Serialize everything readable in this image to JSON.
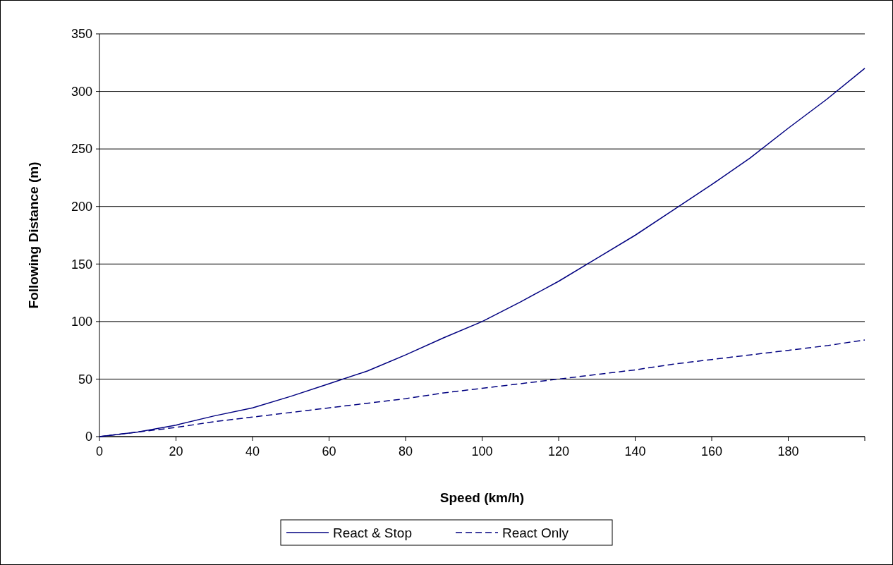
{
  "chart_data": {
    "type": "line",
    "xlabel": "Speed (km/h)",
    "ylabel": "Following Distance (m)",
    "x": [
      0,
      10,
      20,
      30,
      40,
      50,
      60,
      70,
      80,
      90,
      100,
      110,
      120,
      130,
      140,
      150,
      160,
      170,
      180,
      190,
      200
    ],
    "series": [
      {
        "name": "React & Stop",
        "color": "#000080",
        "line_style": "solid",
        "values": [
          0,
          4,
          10,
          18,
          25,
          35,
          46,
          57,
          71,
          86,
          100,
          117,
          135,
          155,
          175,
          197,
          219,
          242,
          268,
          293,
          320
        ]
      },
      {
        "name": "React Only",
        "color": "#000080",
        "line_style": "dashed",
        "values": [
          0,
          4,
          8,
          13,
          17,
          21,
          25,
          29,
          33,
          38,
          42,
          46,
          50,
          54,
          58,
          63,
          67,
          71,
          75,
          79,
          84
        ]
      }
    ],
    "xlim": [
      0,
      200
    ],
    "xticks": [
      0,
      20,
      40,
      60,
      80,
      100,
      120,
      140,
      160,
      180,
      {
        "value": 200,
        "label": null
      }
    ],
    "ylim": [
      0,
      350
    ],
    "yticks": [
      0,
      50,
      100,
      150,
      200,
      250,
      300,
      350
    ],
    "grid": "y",
    "legend": "bottom"
  }
}
